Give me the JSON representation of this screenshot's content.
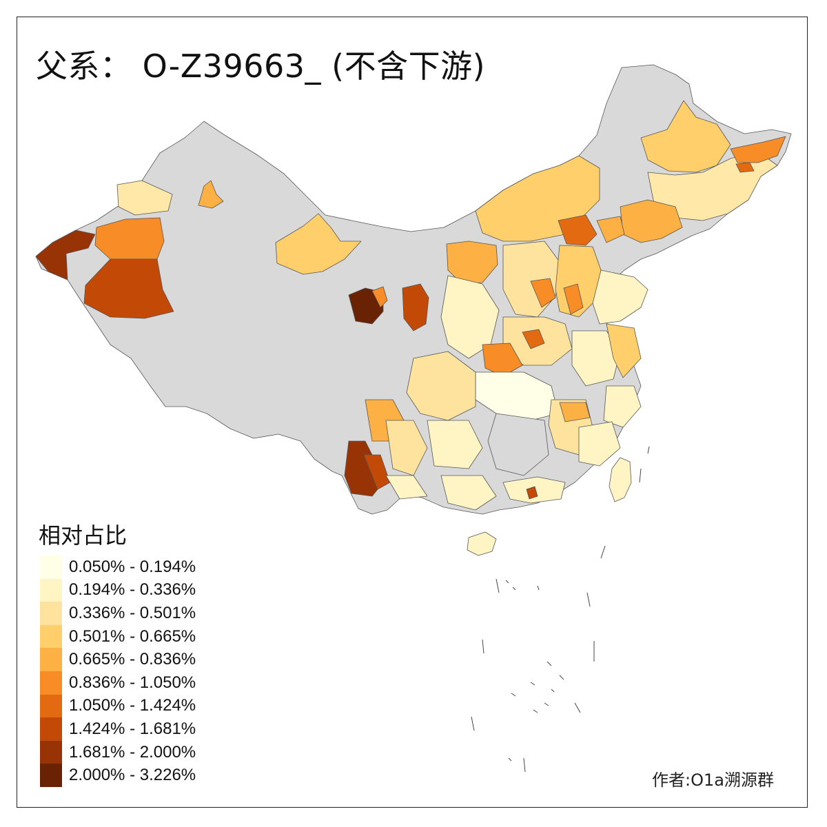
{
  "title": "父系： O-Z39663_ (不含下游)",
  "legend": {
    "title": "相对占比",
    "items": [
      {
        "label": "0.050% - 0.194%",
        "color": "#FFFEE6"
      },
      {
        "label": "0.194% - 0.336%",
        "color": "#FFF4C4"
      },
      {
        "label": "0.336% - 0.501%",
        "color": "#FEE39F"
      },
      {
        "label": "0.501% - 0.665%",
        "color": "#FECF6A"
      },
      {
        "label": "0.665% - 0.836%",
        "color": "#FDB044"
      },
      {
        "label": "0.836% - 1.050%",
        "color": "#F88C26"
      },
      {
        "label": "1.050% - 1.424%",
        "color": "#E46A12"
      },
      {
        "label": "1.424% - 1.681%",
        "color": "#C24A06"
      },
      {
        "label": "1.681% - 2.000%",
        "color": "#983305"
      },
      {
        "label": "2.000% - 3.226%",
        "color": "#6A2205"
      }
    ],
    "no_data_color": "#D9D9D9"
  },
  "credit": "作者:O1a溯源群"
}
